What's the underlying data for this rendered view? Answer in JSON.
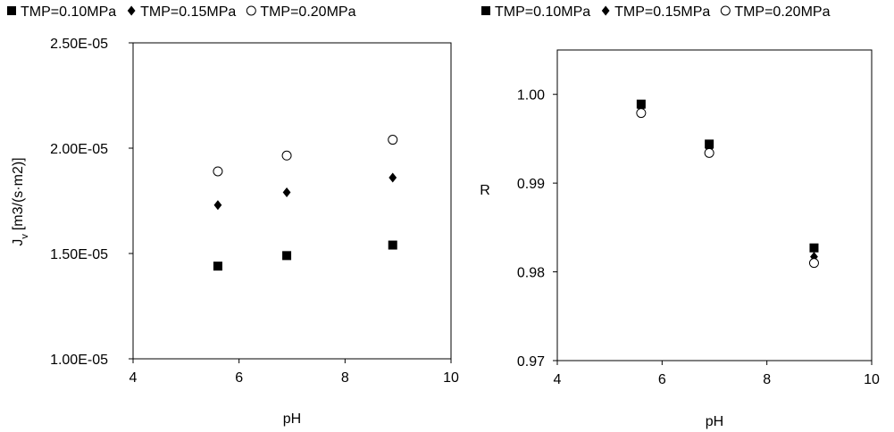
{
  "chart_data": [
    {
      "type": "scatter",
      "xlabel": "pH",
      "ylabel": "J",
      "ylabel_sub": "v",
      "ylabel_unit": "[m3/(s·m2)]",
      "xlim": [
        4,
        10
      ],
      "ylim": [
        1e-05,
        2.5e-05
      ],
      "xticks": [
        4,
        6,
        8,
        10
      ],
      "yticks": [
        1e-05,
        1.5e-05,
        2e-05,
        2.5e-05
      ],
      "ytick_labels": [
        "1.00E-05",
        "1.50E-05",
        "2.00E-05",
        "2.50E-05"
      ],
      "grid": false,
      "legend_position": "top",
      "series": [
        {
          "name": "TMP=0.10MPa",
          "marker": "square",
          "x": [
            5.6,
            6.9,
            8.9
          ],
          "y": [
            1.44e-05,
            1.49e-05,
            1.54e-05
          ]
        },
        {
          "name": "TMP=0.15MPa",
          "marker": "diamond",
          "x": [
            5.6,
            6.9,
            8.9
          ],
          "y": [
            1.73e-05,
            1.79e-05,
            1.86e-05
          ]
        },
        {
          "name": "TMP=0.20MPa",
          "marker": "open-circle",
          "x": [
            5.6,
            6.9,
            8.9
          ],
          "y": [
            1.89e-05,
            1.965e-05,
            2.04e-05
          ]
        }
      ]
    },
    {
      "type": "scatter",
      "xlabel": "pH",
      "ylabel": "R",
      "xlim": [
        4,
        10
      ],
      "ylim": [
        0.97,
        1.005
      ],
      "xticks": [
        4,
        6,
        8,
        10
      ],
      "yticks": [
        0.97,
        0.98,
        0.99,
        1.0
      ],
      "ytick_labels": [
        "0.97",
        "0.98",
        "0.99",
        "1.00"
      ],
      "grid": false,
      "legend_position": "top",
      "series": [
        {
          "name": "TMP=0.10MPa",
          "marker": "square",
          "x": [
            5.6,
            6.9,
            8.9
          ],
          "y": [
            0.9989,
            0.9944,
            0.9827
          ]
        },
        {
          "name": "TMP=0.15MPa",
          "marker": "diamond",
          "x": [
            5.6,
            6.9,
            8.9
          ],
          "y": [
            0.9985,
            0.9939,
            0.9817
          ]
        },
        {
          "name": "TMP=0.20MPa",
          "marker": "open-circle",
          "x": [
            5.6,
            6.9,
            8.9
          ],
          "y": [
            0.9979,
            0.9934,
            0.981
          ]
        }
      ]
    }
  ]
}
